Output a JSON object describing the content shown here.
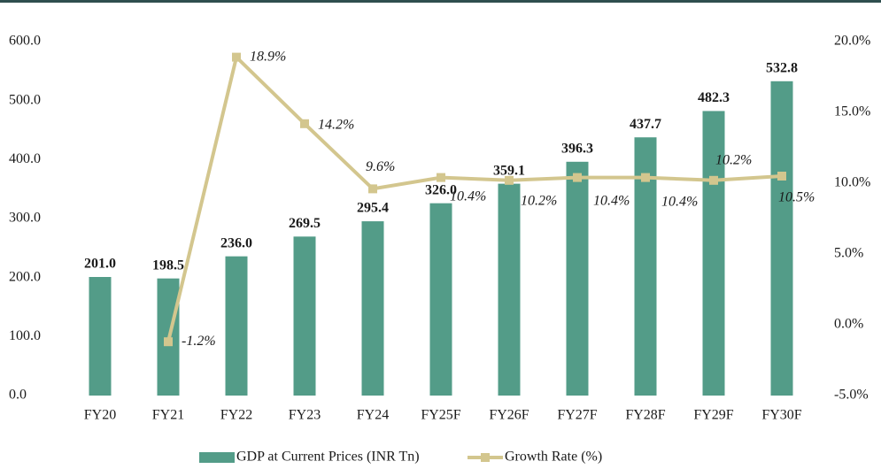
{
  "chart_data": {
    "type": "bar_line",
    "categories": [
      "FY20",
      "FY21",
      "FY22",
      "FY23",
      "FY24",
      "FY25F",
      "FY26F",
      "FY27F",
      "FY28F",
      "FY29F",
      "FY30F"
    ],
    "series": [
      {
        "name": "GDP at Current Prices (INR Tn)",
        "type": "bar",
        "color": "#539c88",
        "values": [
          201.0,
          198.5,
          236.0,
          269.5,
          295.4,
          326.0,
          359.1,
          396.3,
          437.7,
          482.3,
          532.8
        ],
        "value_labels": [
          "201.0",
          "198.5",
          "236.0",
          "269.5",
          "295.4",
          "326.0",
          "359.1",
          "396.3",
          "437.7",
          "482.3",
          "532.8"
        ]
      },
      {
        "name": "Growth Rate (%)",
        "type": "line",
        "axis": "y2",
        "color": "#d3c68e",
        "values": [
          null,
          -1.2,
          18.9,
          14.2,
          9.6,
          10.4,
          10.2,
          10.4,
          10.4,
          10.2,
          10.5
        ],
        "value_labels": [
          null,
          "-1.2%",
          "18.9%",
          "14.2%",
          "9.6%",
          "10.4%",
          "10.2%",
          "10.4%",
          "10.4%",
          "10.2%",
          "10.5%"
        ]
      }
    ],
    "ylim": [
      0,
      600
    ],
    "yticks": [
      {
        "value": 0,
        "label": "0.0"
      },
      {
        "value": 100,
        "label": "100.0"
      },
      {
        "value": 200,
        "label": "200.0"
      },
      {
        "value": 300,
        "label": "300.0"
      },
      {
        "value": 400,
        "label": "400.0"
      },
      {
        "value": 500,
        "label": "500.0"
      },
      {
        "value": 600,
        "label": "600.0"
      }
    ],
    "y2lim": [
      -5,
      20
    ],
    "y2ticks": [
      {
        "value": -5,
        "label": "-5.0%"
      },
      {
        "value": 0,
        "label": "0.0%"
      },
      {
        "value": 5,
        "label": "5.0%"
      },
      {
        "value": 10,
        "label": "10.0%"
      },
      {
        "value": 15,
        "label": "15.0%"
      },
      {
        "value": 20,
        "label": "20.0%"
      }
    ],
    "legend": "bottom"
  }
}
